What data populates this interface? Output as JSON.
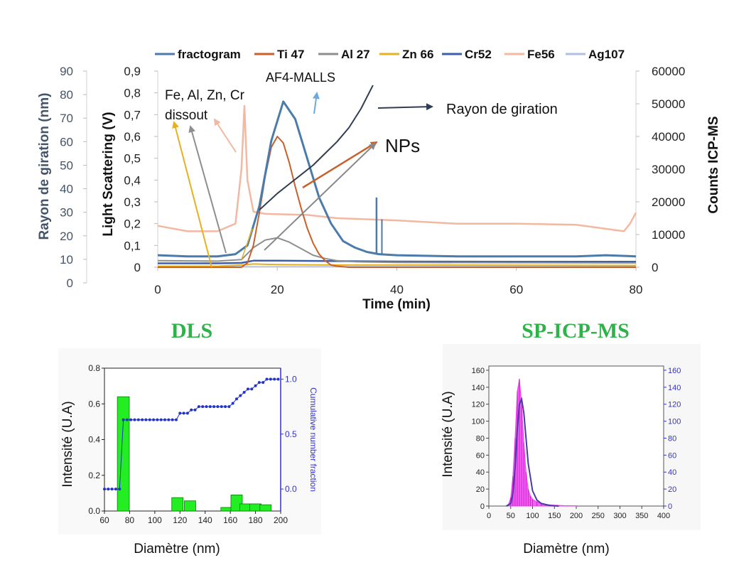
{
  "colors": {
    "fractogram": "#4a7bab",
    "ti47": "#c8602b",
    "al27": "#8e8e8e",
    "zn66": "#e6b020",
    "cr52": "#3c5fa8",
    "fe56": "#f2b8a2",
    "ag107": "#aebfe2",
    "rg": "#2f3e52",
    "np_arrow": "#c8602b",
    "dls_title": "#2fb24a",
    "dls_bar": "#22ee22",
    "cum_line": "#2233cc",
    "sp_hist": "#ee44ee",
    "sp_fit": "#4a3aa8",
    "right_axis_blue": "#3333cc"
  },
  "chart_data": [
    {
      "type": "line",
      "legend": [
        "fractogram",
        "Ti 47",
        "Al 27",
        "Zn 66",
        "Cr52",
        "Fe56",
        "Ag107"
      ],
      "legend_position": "top",
      "xlabel": "Time (min)",
      "xlim": [
        0,
        80
      ],
      "xticks": [
        "0",
        "20",
        "40",
        "60",
        "80"
      ],
      "ylabel_left_outer": "Rayon de giration (nm)",
      "ylim_left_outer": [
        0,
        90
      ],
      "yticks_left_outer": [
        "0",
        "10",
        "20",
        "30",
        "40",
        "50",
        "60",
        "70",
        "80",
        "90"
      ],
      "ylabel_left": "Light Scattering (V)",
      "ylim_left": [
        0,
        0.9
      ],
      "yticks_left": [
        "0",
        "0,1",
        "0,2",
        "0,3",
        "0,4",
        "0,5",
        "0,6",
        "0,7",
        "0,8",
        "0,9"
      ],
      "ylabel_right": "Counts ICP-MS",
      "ylim_right": [
        0,
        60000
      ],
      "yticks_right": [
        "0",
        "10000",
        "20000",
        "30000",
        "40000",
        "50000",
        "60000"
      ],
      "annotations": {
        "dissolved": [
          "Fe, Al, Zn, Cr",
          "dissout"
        ],
        "malls": "AF4-MALLS",
        "rg": "Rayon de giration",
        "nps": "NPs"
      },
      "series": [
        {
          "name": "fractogram",
          "axis": "left",
          "x": [
            0,
            5,
            10,
            13,
            15,
            17,
            19,
            21,
            23,
            25,
            27,
            29,
            31,
            33,
            35,
            37,
            40,
            50,
            60,
            70,
            75,
            80
          ],
          "y": [
            0.055,
            0.05,
            0.05,
            0.06,
            0.1,
            0.28,
            0.58,
            0.76,
            0.68,
            0.5,
            0.32,
            0.2,
            0.12,
            0.09,
            0.07,
            0.06,
            0.055,
            0.05,
            0.05,
            0.05,
            0.055,
            0.05
          ]
        },
        {
          "name": "Ti 47",
          "axis": "left",
          "x": [
            0,
            10,
            14,
            15,
            16,
            17,
            18,
            19,
            20,
            21,
            22,
            23,
            24,
            25,
            26,
            27,
            28,
            29,
            30,
            32,
            80
          ],
          "y": [
            0,
            0,
            0,
            0.02,
            0.1,
            0.25,
            0.42,
            0.55,
            0.6,
            0.57,
            0.48,
            0.37,
            0.27,
            0.18,
            0.11,
            0.06,
            0.03,
            0.01,
            0.005,
            0,
            0
          ]
        },
        {
          "name": "Al 27",
          "axis": "left",
          "x": [
            0,
            10,
            14,
            16,
            18,
            20,
            22,
            24,
            26,
            28,
            30,
            33,
            40,
            80
          ],
          "y": [
            0.03,
            0.028,
            0.035,
            0.09,
            0.125,
            0.135,
            0.115,
            0.085,
            0.055,
            0.04,
            0.03,
            0.025,
            0.022,
            0.02
          ]
        },
        {
          "name": "Zn 66",
          "axis": "left",
          "x": [
            0,
            10,
            14,
            16,
            20,
            30,
            40,
            80
          ],
          "y": [
            0.005,
            0.005,
            0.01,
            0.015,
            0.012,
            0.01,
            0.01,
            0.008
          ]
        },
        {
          "name": "Cr52",
          "axis": "left",
          "x": [
            0,
            10,
            14,
            16,
            20,
            30,
            40,
            60,
            80
          ],
          "y": [
            0.018,
            0.018,
            0.02,
            0.03,
            0.03,
            0.028,
            0.026,
            0.025,
            0.025
          ]
        },
        {
          "name": "Fe56",
          "axis": "left",
          "x": [
            0,
            5,
            10,
            13,
            14,
            14.5,
            15,
            16,
            18,
            25,
            30,
            40,
            50,
            60,
            70,
            78,
            79,
            80
          ],
          "y": [
            0.19,
            0.165,
            0.165,
            0.2,
            0.45,
            0.74,
            0.4,
            0.255,
            0.245,
            0.24,
            0.225,
            0.215,
            0.2,
            0.2,
            0.195,
            0.165,
            0.2,
            0.25
          ]
        },
        {
          "name": "Ag107",
          "axis": "left",
          "x": [
            0,
            80
          ],
          "y": [
            0.003,
            0.003
          ]
        },
        {
          "name": "Rayon de giration",
          "axis": "left_outer",
          "x": [
            17,
            20,
            22,
            24,
            26,
            28,
            30,
            32,
            34,
            36
          ],
          "y": [
            31,
            38,
            42,
            46,
            50,
            55,
            60,
            66,
            74,
            84
          ]
        }
      ]
    },
    {
      "type": "bar",
      "title": "DLS",
      "xlabel": "Diamètre (nm)",
      "ylabel": "Intensité (U.A)",
      "xlim": [
        60,
        200
      ],
      "ylim": [
        0,
        0.8
      ],
      "xticks": [
        "60",
        "80",
        "100",
        "120",
        "140",
        "160",
        "180",
        "200"
      ],
      "yticks": [
        "0.0",
        "0.2",
        "0.4",
        "0.6",
        "0.8"
      ],
      "bars": [
        {
          "x": 75,
          "value": 0.64
        },
        {
          "x": 118,
          "value": 0.075
        },
        {
          "x": 128,
          "value": 0.057
        },
        {
          "x": 157,
          "value": 0.02
        },
        {
          "x": 165,
          "value": 0.09
        },
        {
          "x": 172,
          "value": 0.04
        },
        {
          "x": 180,
          "value": 0.04
        },
        {
          "x": 188,
          "value": 0.035
        }
      ],
      "cumulative": {
        "name": "Cumulative number fraction",
        "ylim": [
          -0.2,
          1.1
        ],
        "yticks": [
          "0.0",
          "0.5",
          "1.0"
        ],
        "x": [
          60,
          63,
          66,
          69,
          72,
          75,
          78,
          81,
          84,
          87,
          90,
          93,
          96,
          99,
          102,
          105,
          108,
          111,
          114,
          117,
          120,
          123,
          126,
          129,
          132,
          135,
          138,
          141,
          144,
          147,
          150,
          153,
          156,
          159,
          162,
          165,
          168,
          171,
          174,
          177,
          180,
          183,
          186,
          189,
          192,
          195,
          198
        ],
        "y": [
          0,
          0,
          0,
          0,
          0,
          0.63,
          0.63,
          0.63,
          0.63,
          0.63,
          0.63,
          0.63,
          0.63,
          0.63,
          0.63,
          0.63,
          0.63,
          0.63,
          0.63,
          0.63,
          0.69,
          0.69,
          0.69,
          0.72,
          0.72,
          0.75,
          0.75,
          0.75,
          0.75,
          0.75,
          0.75,
          0.75,
          0.75,
          0.75,
          0.78,
          0.82,
          0.85,
          0.88,
          0.91,
          0.91,
          0.94,
          0.97,
          0.97,
          1.0,
          1.0,
          1.0,
          1.0
        ]
      }
    },
    {
      "type": "bar",
      "title": "SP-ICP-MS",
      "xlabel": "Diamètre (nm)",
      "ylabel": "Intensité (U.A)",
      "xlim": [
        0,
        400
      ],
      "ylim": [
        0,
        165
      ],
      "xticks": [
        "0",
        "50",
        "100",
        "150",
        "200",
        "250",
        "300",
        "350",
        "400"
      ],
      "yticks": [
        "0",
        "20",
        "40",
        "60",
        "80",
        "100",
        "120",
        "140",
        "160"
      ],
      "yticks_right": [
        "0",
        "20",
        "40",
        "60",
        "80",
        "100",
        "120",
        "140",
        "160"
      ],
      "histogram_x": [
        45,
        50,
        55,
        60,
        65,
        70,
        75,
        80,
        85,
        90,
        95,
        100,
        110,
        120,
        130,
        140,
        150,
        170,
        200
      ],
      "histogram_y": [
        2,
        10,
        35,
        80,
        135,
        150,
        118,
        75,
        40,
        20,
        12,
        8,
        5,
        3,
        2,
        1.5,
        1,
        0.5,
        0.3
      ],
      "fit_x": [
        40,
        50,
        55,
        60,
        65,
        70,
        75,
        80,
        85,
        90,
        100,
        110,
        120,
        140,
        160
      ],
      "fit_y": [
        0,
        3,
        15,
        45,
        90,
        120,
        126,
        110,
        80,
        50,
        18,
        7,
        3,
        0.5,
        0
      ]
    }
  ]
}
